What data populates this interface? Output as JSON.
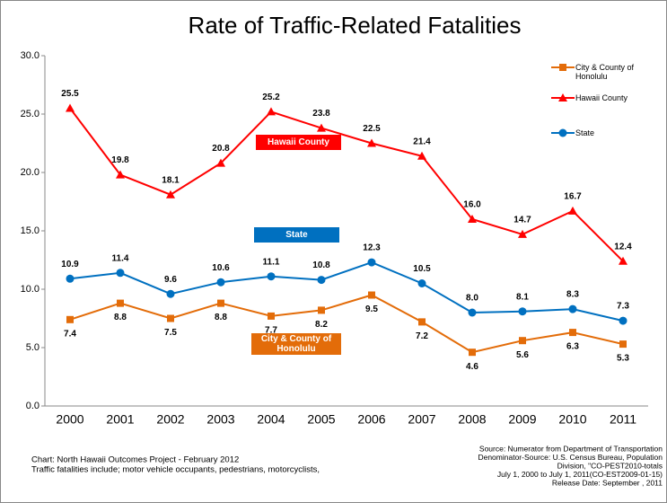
{
  "chart_data": {
    "type": "line",
    "title": "Rate of Traffic-Related Fatalities",
    "categories": [
      "2000",
      "2001",
      "2002",
      "2003",
      "2004",
      "2005",
      "2006",
      "2007",
      "2008",
      "2009",
      "2010",
      "2011"
    ],
    "series": [
      {
        "name": "City & County of Honolulu",
        "color": "#e36c09",
        "marker": "square",
        "label_position": "below",
        "values": [
          7.4,
          8.8,
          7.5,
          8.8,
          7.7,
          8.2,
          9.5,
          7.2,
          4.6,
          5.6,
          6.3,
          5.3
        ],
        "value_labels": [
          "7.4",
          "8.8",
          "7.5",
          "8.8",
          "7.7",
          "8.2",
          "9.5",
          "7.2",
          "4.6",
          "5.6",
          "6.3",
          "5.3"
        ]
      },
      {
        "name": "Hawaii County",
        "color": "#ff0000",
        "marker": "triangle",
        "label_position": "above",
        "values": [
          25.5,
          19.8,
          18.1,
          20.8,
          25.2,
          23.8,
          22.5,
          21.4,
          16.0,
          14.7,
          16.7,
          12.4
        ],
        "value_labels": [
          "25.5",
          "19.8",
          "18.1",
          "20.8",
          "25.2",
          "23.8",
          "22.5",
          "21.4",
          "16.0",
          "14.7",
          "16.7",
          "12.4"
        ]
      },
      {
        "name": "State",
        "color": "#0070c0",
        "marker": "circle",
        "label_position": "above",
        "values": [
          10.9,
          11.4,
          9.6,
          10.6,
          11.1,
          10.8,
          12.3,
          10.5,
          8.0,
          8.1,
          8.3,
          7.3
        ],
        "value_labels": [
          "10.9",
          "11.4",
          "9.6",
          "10.6",
          "11.1",
          "10.8",
          "12.3",
          "10.5",
          "8.0",
          "8.1",
          "8.3",
          "7.3"
        ]
      }
    ],
    "ylim": [
      0,
      30
    ],
    "yticks": [
      {
        "value": 0,
        "label": "0.0"
      },
      {
        "value": 5,
        "label": "5.0"
      },
      {
        "value": 10,
        "label": "10.0"
      },
      {
        "value": 15,
        "label": "15.0"
      },
      {
        "value": 20,
        "label": "20.0"
      },
      {
        "value": 25,
        "label": "25.0"
      },
      {
        "value": 30,
        "label": "30.0"
      }
    ],
    "legend": "upper right",
    "annotations": [
      {
        "text": "Hawaii County",
        "color": "#ff0000"
      },
      {
        "text": "State",
        "color": "#0070c0"
      },
      {
        "text": "City & County of Honolulu",
        "color": "#e36c09"
      }
    ],
    "footer_left": [
      "Chart:  North Hawaii Outcomes Project - February 2012",
      "Traffic fatalities include; motor vehicle occupants, pedestrians, motorcyclists,"
    ],
    "footer_right": [
      "Source:  Numerator from Department of Transportation",
      "Denominator-Source: U.S. Census Bureau, Population",
      "Division, \"CO-PEST2010-totals",
      "July 1, 2000 to July 1, 2011(CO-EST2009-01-15)",
      "Release Date: September , 2011"
    ]
  }
}
